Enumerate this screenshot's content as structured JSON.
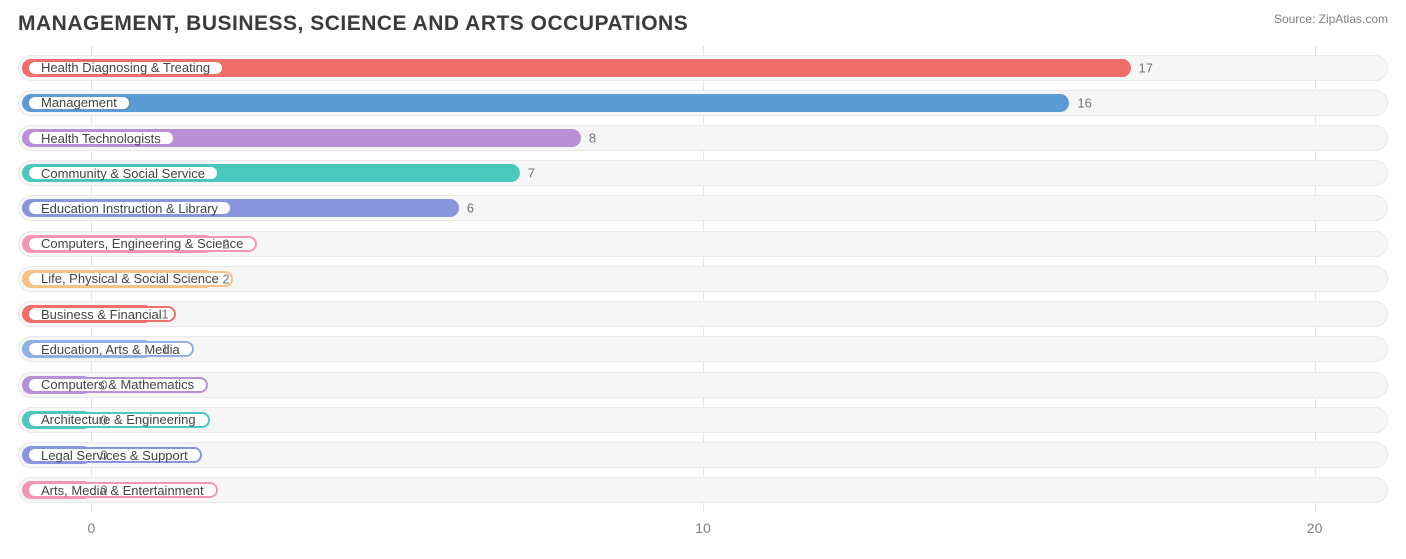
{
  "title": "MANAGEMENT, BUSINESS, SCIENCE AND ARTS OCCUPATIONS",
  "source_label": "Source:",
  "source_site": "ZipAtlas.com",
  "chart": {
    "type": "bar-horizontal",
    "xmin": -1.2,
    "xmax": 21.2,
    "xticks": [
      0,
      10,
      20
    ],
    "background_color": "#ffffff",
    "track_bg": "#f6f6f6",
    "track_border": "#e9e9e9",
    "grid_color": "#e5e5e5",
    "tick_fontsize": 14,
    "tick_color": "#808080",
    "label_fontsize": 13,
    "label_color": "#444444",
    "value_fontsize": 13,
    "value_color": "#757575",
    "bars": [
      {
        "label": "Health Diagnosing & Treating",
        "value": 17,
        "color": "#ef6d6a"
      },
      {
        "label": "Management",
        "value": 16,
        "color": "#5b9bd5"
      },
      {
        "label": "Health Technologists",
        "value": 8,
        "color": "#b990d5"
      },
      {
        "label": "Community & Social Service",
        "value": 7,
        "color": "#4bc8bd"
      },
      {
        "label": "Education Instruction & Library",
        "value": 6,
        "color": "#8a95e0"
      },
      {
        "label": "Computers, Engineering & Science",
        "value": 2,
        "color": "#f495b6"
      },
      {
        "label": "Life, Physical & Social Science",
        "value": 2,
        "color": "#f6c185"
      },
      {
        "label": "Business & Financial",
        "value": 1,
        "color": "#ef6d6a"
      },
      {
        "label": "Education, Arts & Media",
        "value": 1,
        "color": "#8fb0e2"
      },
      {
        "label": "Computers & Mathematics",
        "value": 0,
        "color": "#b990d5"
      },
      {
        "label": "Architecture & Engineering",
        "value": 0,
        "color": "#4bc8bd"
      },
      {
        "label": "Legal Services & Support",
        "value": 0,
        "color": "#8a95e0"
      },
      {
        "label": "Arts, Media & Entertainment",
        "value": 0,
        "color": "#f495b6"
      }
    ]
  }
}
